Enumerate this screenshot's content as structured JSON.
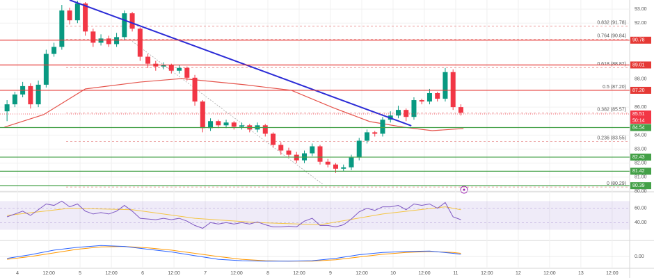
{
  "chart_data": {
    "type": "candlestick",
    "x": [
      -4,
      -1,
      2,
      5,
      8,
      11,
      14,
      17,
      20,
      23,
      26,
      29,
      32,
      35,
      38,
      41,
      44,
      47,
      50,
      53,
      56,
      59,
      62,
      65,
      68,
      71,
      74,
      77,
      80,
      83,
      86,
      89,
      92,
      95,
      98,
      101,
      104,
      107,
      110,
      113,
      116,
      119,
      122,
      125,
      128,
      131,
      134,
      137,
      140,
      143,
      146,
      149,
      152,
      155,
      158,
      161,
      164,
      167,
      170
    ],
    "open": [
      85.7,
      86.2,
      86.9,
      87.5,
      86.2,
      87.6,
      89.8,
      90.3,
      92.9,
      92.2,
      93.4,
      91.4,
      90.6,
      90.9,
      90.5,
      91.0,
      92.7,
      91.6,
      89.6,
      89.1,
      88.9,
      89.0,
      88.6,
      88.8,
      88.1,
      86.4,
      84.5,
      85.0,
      84.7,
      84.9,
      84.6,
      84.7,
      84.4,
      84.7,
      84.1,
      83.3,
      82.9,
      82.6,
      82.2,
      82.7,
      83.2,
      82.1,
      81.9,
      81.6,
      81.7,
      82.4,
      83.6,
      84.2,
      84.1,
      85.1,
      85.4,
      85.8,
      85.3,
      86.5,
      86.4,
      87.0,
      86.6,
      88.5,
      86.0
    ],
    "high": [
      86.5,
      87.1,
      87.8,
      87.7,
      87.9,
      90.1,
      90.6,
      93.3,
      93.1,
      93.6,
      93.5,
      91.6,
      91.2,
      91.1,
      91.3,
      92.9,
      92.8,
      91.7,
      89.8,
      89.3,
      89.2,
      89.1,
      89.0,
      88.9,
      88.3,
      86.5,
      85.2,
      85.1,
      85.1,
      85.0,
      84.9,
      84.8,
      84.9,
      84.8,
      84.2,
      83.5,
      83.1,
      82.8,
      82.9,
      83.4,
      83.3,
      82.3,
      82.0,
      81.9,
      82.6,
      83.8,
      84.4,
      84.3,
      85.3,
      85.7,
      86.1,
      85.9,
      86.7,
      86.6,
      87.3,
      87.1,
      88.8,
      88.7,
      86.2
    ],
    "low": [
      85.0,
      86.0,
      86.7,
      85.9,
      86.0,
      87.4,
      89.6,
      90.1,
      91.9,
      92.0,
      91.1,
      90.3,
      90.4,
      90.3,
      90.3,
      90.8,
      91.4,
      89.3,
      88.8,
      88.6,
      88.7,
      88.4,
      88.4,
      87.9,
      86.1,
      84.2,
      84.3,
      84.5,
      84.5,
      84.4,
      84.4,
      84.2,
      84.2,
      83.9,
      83.1,
      82.6,
      82.4,
      82.0,
      82.0,
      82.5,
      81.9,
      81.7,
      81.3,
      81.4,
      81.5,
      82.2,
      83.4,
      83.9,
      83.9,
      84.9,
      85.2,
      85.0,
      85.1,
      86.2,
      86.2,
      86.4,
      86.4,
      85.8,
      85.4
    ],
    "close": [
      86.2,
      86.9,
      87.5,
      86.2,
      87.6,
      89.8,
      90.3,
      92.9,
      92.2,
      93.4,
      91.4,
      90.6,
      90.9,
      90.5,
      91.0,
      92.7,
      91.6,
      89.6,
      89.1,
      88.9,
      89.0,
      88.6,
      88.8,
      88.1,
      86.4,
      84.5,
      85.0,
      84.7,
      84.9,
      84.6,
      84.7,
      84.4,
      84.7,
      84.1,
      83.3,
      82.9,
      82.6,
      82.2,
      82.7,
      83.2,
      82.1,
      81.9,
      81.6,
      81.7,
      82.4,
      83.6,
      84.2,
      84.1,
      85.1,
      85.4,
      85.8,
      85.3,
      86.5,
      86.4,
      87.0,
      86.6,
      88.5,
      86.0,
      85.6
    ],
    "up_color": "#089981",
    "down_color": "#f23645",
    "xlim": [
      -6.7,
      234.7
    ],
    "xticks": [
      {
        "value": 0,
        "label": "4"
      },
      {
        "value": 12,
        "label": "12:00"
      },
      {
        "value": 24,
        "label": "5"
      },
      {
        "value": 36,
        "label": "12:00"
      },
      {
        "value": 48,
        "label": "6"
      },
      {
        "value": 60,
        "label": "12:00"
      },
      {
        "value": 72,
        "label": "7"
      },
      {
        "value": 84,
        "label": "12:00"
      },
      {
        "value": 96,
        "label": "8"
      },
      {
        "value": 108,
        "label": "12:00"
      },
      {
        "value": 120,
        "label": "9"
      },
      {
        "value": 132,
        "label": "12:00"
      },
      {
        "value": 144,
        "label": "10"
      },
      {
        "value": 156,
        "label": "12:00"
      },
      {
        "value": 168,
        "label": "11"
      },
      {
        "value": 180,
        "label": "12:00"
      },
      {
        "value": 192,
        "label": "12"
      },
      {
        "value": 204,
        "label": "12:00"
      },
      {
        "value": 216,
        "label": "13"
      },
      {
        "value": 228,
        "label": "12:00"
      }
    ],
    "ylim": [
      80,
      93.65
    ],
    "yticks": [
      {
        "value": 80,
        "label": "80.00"
      },
      {
        "value": 81,
        "label": "81.00"
      },
      {
        "value": 82,
        "label": "82.00"
      },
      {
        "value": 83,
        "label": "83.00"
      },
      {
        "value": 84,
        "label": "84.00"
      },
      {
        "value": 86,
        "label": "86.00"
      },
      {
        "value": 88,
        "label": "88.00"
      },
      {
        "value": 92,
        "label": "92.00"
      },
      {
        "value": 93,
        "label": "93.00"
      }
    ],
    "grid": true,
    "moving_average": {
      "color": "#e5534b",
      "x": [
        -5,
        10,
        26,
        47,
        63,
        87,
        105,
        121,
        135,
        148,
        159,
        171
      ],
      "values": [
        84.57,
        85.46,
        87.3,
        87.79,
        88.04,
        87.6,
        87.2,
        85.96,
        84.97,
        84.57,
        84.32,
        84.47
      ]
    },
    "trend_line": {
      "color": "#2b2bd6",
      "x": [
        20,
        151
      ],
      "values": [
        93.65,
        84.67
      ]
    },
    "fib_line": {
      "color": "#aaaaaa",
      "x": [
        44,
        117
      ],
      "values": [
        90.7,
        80.5
      ]
    },
    "fib_levels": [
      {
        "value": 91.78,
        "label": "0.832 (91.78)"
      },
      {
        "value": 90.84,
        "label": "0.764 (90.84)"
      },
      {
        "value": 88.82,
        "label": "0.618 (88.82)"
      },
      {
        "value": 87.2,
        "label": "0.5 (87.20)"
      },
      {
        "value": 85.57,
        "label": "0.382 (85.57)"
      },
      {
        "value": 83.55,
        "label": "0.236 (83.55)"
      },
      {
        "value": 80.29,
        "label": "0 (80.29)"
      }
    ],
    "price_levels": [
      {
        "value": 90.78,
        "label": "90.78",
        "color": "#e53935"
      },
      {
        "value": 89.01,
        "label": "89.01",
        "color": "#e53935"
      },
      {
        "value": 87.2,
        "label": "87.20",
        "color": "#e53935"
      },
      {
        "value": 85.51,
        "label": "85.51",
        "color": "#f23645",
        "line_style": "dotted"
      },
      {
        "value": 84.54,
        "label": "84.54",
        "color": "#43a047"
      },
      {
        "value": 82.43,
        "label": "82.43",
        "color": "#43a047"
      },
      {
        "value": 81.42,
        "label": "81.42",
        "color": "#43a047"
      },
      {
        "value": 80.39,
        "label": "80.39",
        "color": "#43a047"
      }
    ],
    "countdown": "50:14",
    "rsi": {
      "ylim": [
        16,
        82
      ],
      "yticks": [
        {
          "value": 40,
          "label": "40.00"
        },
        {
          "value": 60,
          "label": "60.00"
        }
      ],
      "band": [
        30,
        70
      ],
      "color": "#7e57c2",
      "values": [
        48,
        52,
        56,
        50,
        58,
        66,
        64,
        70,
        62,
        66,
        56,
        52,
        54,
        52,
        56,
        64,
        56,
        46,
        45,
        44,
        46,
        44,
        46,
        42,
        36,
        32,
        40,
        38,
        40,
        38,
        40,
        38,
        41,
        37,
        34,
        34,
        35,
        34,
        42,
        46,
        36,
        36,
        34,
        37,
        45,
        55,
        60,
        57,
        62,
        62,
        64,
        58,
        66,
        64,
        66,
        60,
        68,
        48,
        44
      ],
      "signal": {
        "color": "#f4c542",
        "x": [
          -4,
          20,
          44,
          68,
          92,
          116,
          140,
          164,
          170
        ],
        "values": [
          50,
          60,
          58,
          46,
          40,
          37,
          52,
          62,
          58
        ]
      }
    },
    "macd": {
      "ylim": [
        -1.2,
        1.6
      ],
      "yticks": [
        {
          "value": 0,
          "label": "0.00"
        }
      ],
      "macd": {
        "color": "#2962ff",
        "x": [
          -4,
          5,
          14,
          23,
          32,
          41,
          50,
          59,
          68,
          77,
          86,
          95,
          104,
          113,
          122,
          131,
          140,
          149,
          158,
          167,
          170
        ],
        "values": [
          -0.2,
          0.2,
          0.7,
          1.0,
          1.2,
          1.1,
          0.8,
          0.5,
          0.1,
          -0.3,
          -0.45,
          -0.5,
          -0.5,
          -0.45,
          -0.2,
          0.2,
          0.45,
          0.55,
          0.6,
          0.35,
          0.25
        ]
      },
      "signal": {
        "color": "#ff9800",
        "x": [
          -4,
          5,
          14,
          23,
          32,
          41,
          50,
          59,
          68,
          77,
          86,
          95,
          104,
          113,
          122,
          131,
          140,
          149,
          158,
          167,
          170
        ],
        "values": [
          -0.3,
          0.0,
          0.4,
          0.8,
          1.05,
          1.1,
          0.95,
          0.7,
          0.35,
          0.0,
          -0.3,
          -0.45,
          -0.5,
          -0.5,
          -0.35,
          -0.05,
          0.25,
          0.45,
          0.55,
          0.45,
          0.35
        ]
      }
    }
  }
}
